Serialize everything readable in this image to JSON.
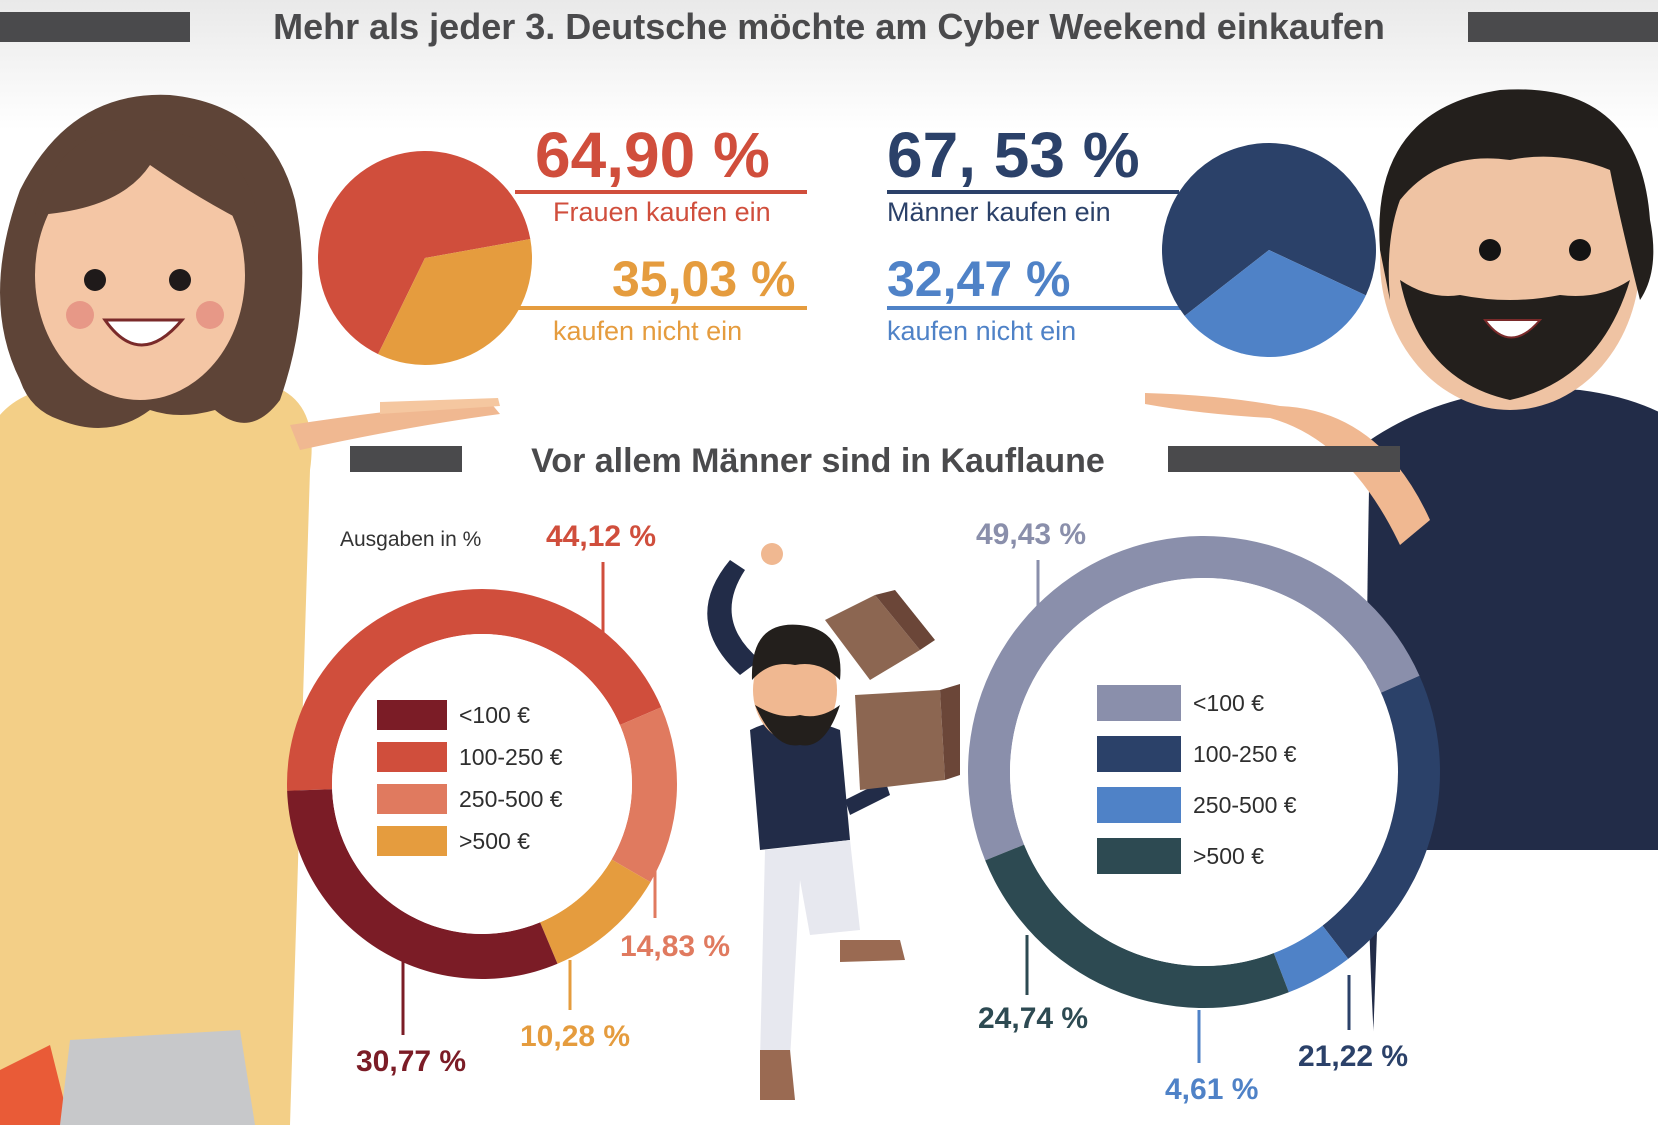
{
  "title": "Mehr als jeder 3. Deutsche möchte am Cyber Weekend einkaufen",
  "subtitle": "Vor allem Männer sind in Kauflaune",
  "colors": {
    "women_buy": "#d04e3c",
    "women_not": "#e59c3e",
    "men_buy": "#2b4169",
    "men_not": "#4f82c7",
    "bar": "#4a4a4c"
  },
  "women_stats": {
    "buy_pct": "64,90 %",
    "buy_label": "Frauen kaufen ein",
    "not_pct": "35,03 %",
    "not_label": "kaufen nicht ein"
  },
  "men_stats": {
    "buy_pct": "67, 53 %",
    "buy_label": "Männer kaufen ein",
    "not_pct": "32,47 %",
    "not_label": "kaufen nicht ein"
  },
  "spend_note": "Ausgaben in %",
  "chart_data": [
    {
      "type": "pie",
      "name": "women_shopping",
      "slices": [
        {
          "label": "Frauen kaufen ein",
          "value": 64.9,
          "color": "#d04e3c"
        },
        {
          "label": "kaufen nicht ein",
          "value": 35.03,
          "color": "#e59c3e"
        }
      ]
    },
    {
      "type": "pie",
      "name": "men_shopping",
      "slices": [
        {
          "label": "Männer kaufen ein",
          "value": 67.53,
          "color": "#2b4169"
        },
        {
          "label": "kaufen nicht ein",
          "value": 32.47,
          "color": "#4f82c7"
        }
      ]
    },
    {
      "type": "pie",
      "subtype": "donut",
      "name": "women_spending",
      "legend": [
        {
          "label": "<100 €",
          "color": "#7b1c26"
        },
        {
          "label": "100-250 €",
          "color": "#d04e3c"
        },
        {
          "label": "250-500 €",
          "color": "#e07a5f"
        },
        {
          "label": ">500 €",
          "color": "#e59c3e"
        }
      ],
      "slices": [
        {
          "label": "100-250 €",
          "value": 44.12,
          "display": "44,12 %",
          "color": "#d04e3c"
        },
        {
          "label": "250-500 €",
          "value": 14.83,
          "display": "14,83 %",
          "color": "#e07a5f"
        },
        {
          "label": ">500 €",
          "value": 10.28,
          "display": "10,28 %",
          "color": "#e59c3e"
        },
        {
          "label": "<100 €",
          "value": 30.77,
          "display": "30,77 %",
          "color": "#7b1c26"
        }
      ]
    },
    {
      "type": "pie",
      "subtype": "donut",
      "name": "men_spending",
      "legend": [
        {
          "label": "<100 €",
          "color": "#8a8fab"
        },
        {
          "label": "100-250 €",
          "color": "#2b4169"
        },
        {
          "label": "250-500 €",
          "color": "#4f82c7"
        },
        {
          "label": ">500 €",
          "color": "#2d4a52"
        }
      ],
      "slices": [
        {
          "label": "<100 €",
          "value": 49.43,
          "display": "49,43 %",
          "color": "#8a8fab"
        },
        {
          "label": "100-250 €",
          "value": 21.22,
          "display": "21,22 %",
          "color": "#2b4169"
        },
        {
          "label": "250-500 €",
          "value": 4.61,
          "display": "4,61 %",
          "color": "#4f82c7"
        },
        {
          "label": ">500 €",
          "value": 24.74,
          "display": "24,74 %",
          "color": "#2d4a52"
        }
      ]
    }
  ]
}
